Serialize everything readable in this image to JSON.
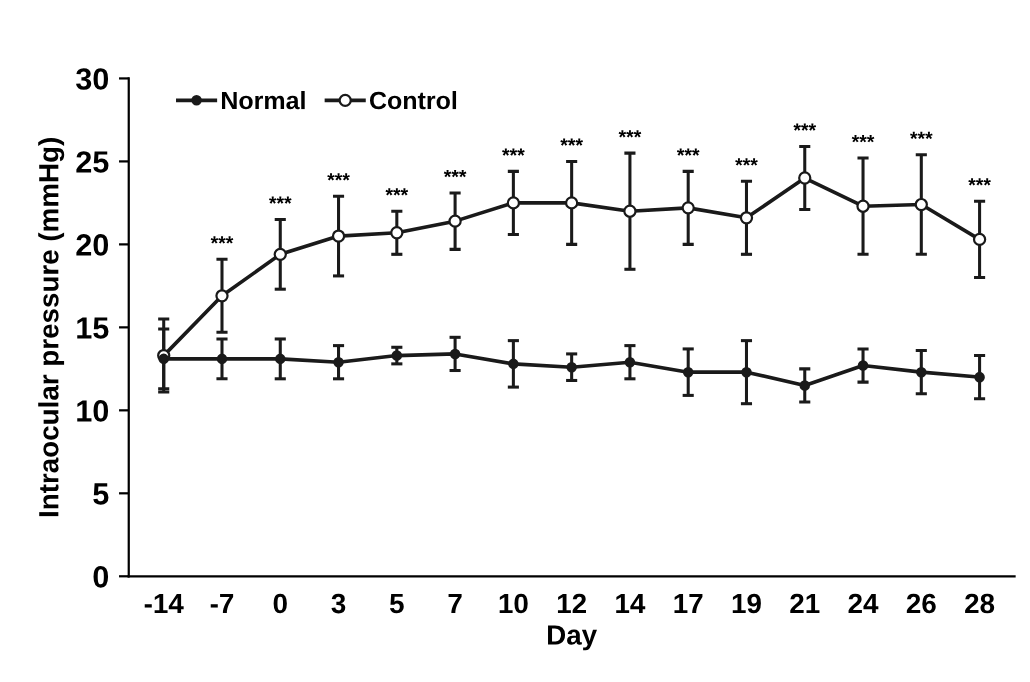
{
  "chart_data": {
    "type": "line",
    "xlabel": "Day",
    "ylabel": "Intraocular pressure (mmHg)",
    "categories": [
      "-14",
      "-7",
      "0",
      "3",
      "5",
      "7",
      "10",
      "12",
      "14",
      "17",
      "19",
      "21",
      "24",
      "26",
      "28"
    ],
    "series": [
      {
        "name": "Normal",
        "color": "#1a1a1a",
        "values": [
          13.1,
          13.1,
          13.1,
          12.9,
          13.3,
          13.4,
          12.8,
          12.6,
          12.9,
          12.3,
          12.3,
          11.5,
          12.7,
          12.3,
          12.0
        ],
        "errors": [
          1.8,
          1.2,
          1.2,
          1.0,
          0.5,
          1.0,
          1.4,
          0.8,
          1.0,
          1.4,
          1.9,
          1.0,
          1.0,
          1.3,
          1.3
        ]
      },
      {
        "name": "Control",
        "color": "#1a1a1a",
        "values": [
          13.3,
          16.9,
          19.4,
          20.5,
          20.7,
          21.4,
          22.5,
          22.5,
          22.0,
          22.2,
          21.6,
          24.0,
          22.3,
          22.4,
          20.3
        ],
        "errors": [
          2.2,
          2.2,
          2.1,
          2.4,
          1.3,
          1.7,
          1.9,
          2.5,
          3.5,
          2.2,
          2.2,
          1.9,
          2.9,
          3.0,
          2.3
        ]
      }
    ],
    "annotations": [
      {
        "text": "***",
        "x": "-7",
        "y": 19.1
      },
      {
        "text": "***",
        "x": "0",
        "y": 21.5
      },
      {
        "text": "***",
        "x": "3",
        "y": 22.9
      },
      {
        "text": "***",
        "x": "5",
        "y": 22.0
      },
      {
        "text": "***",
        "x": "7",
        "y": 23.1
      },
      {
        "text": "***",
        "x": "10",
        "y": 24.4
      },
      {
        "text": "***",
        "x": "12",
        "y": 25.0
      },
      {
        "text": "***",
        "x": "14",
        "y": 25.5
      },
      {
        "text": "***",
        "x": "17",
        "y": 24.4
      },
      {
        "text": "***",
        "x": "19",
        "y": 23.8
      },
      {
        "text": "***",
        "x": "21",
        "y": 25.9
      },
      {
        "text": "***",
        "x": "24",
        "y": 25.2
      },
      {
        "text": "***",
        "x": "26",
        "y": 25.4
      },
      {
        "text": "***",
        "x": "28",
        "y": 22.6
      }
    ],
    "ylim": [
      0,
      30
    ],
    "yticks": [
      0,
      5,
      10,
      15,
      20,
      25,
      30
    ],
    "marker": "circle",
    "line_style": "solid",
    "grid": false,
    "legend": "top left"
  }
}
